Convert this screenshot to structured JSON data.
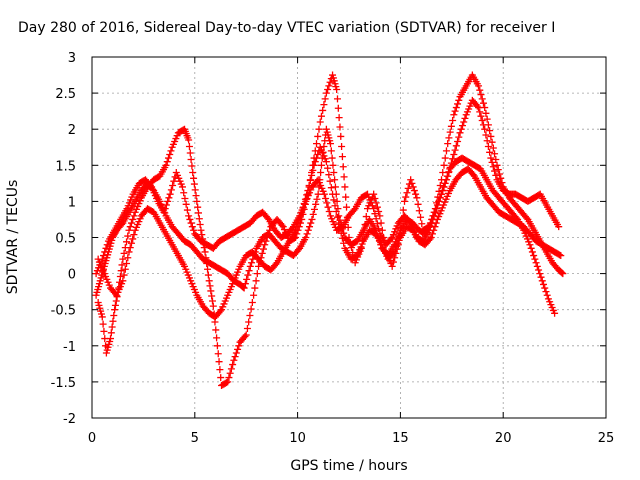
{
  "chart_data": {
    "type": "scatter",
    "title": "Day 280 of 2016, Sidereal Day-to-day VTEC variation (SDTVAR) for receiver I",
    "xlabel": "GPS time / hours",
    "ylabel": "SDTVAR / TECUs",
    "xlim": [
      0,
      25
    ],
    "ylim": [
      -2,
      3
    ],
    "xticks": [
      "0",
      "5",
      "10",
      "15",
      "20",
      "25"
    ],
    "yticks": [
      "-2",
      "-1.5",
      "-1",
      "-0.5",
      "0",
      "0.5",
      "1",
      "1.5",
      "2",
      "2.5",
      "3"
    ],
    "grid": true,
    "marker": "plus",
    "color": "#ff0000",
    "series": [
      {
        "points": [
          [
            0.2,
            -0.3
          ],
          [
            0.4,
            -0.1
          ],
          [
            0.6,
            0.1
          ],
          [
            0.8,
            0.3
          ],
          [
            1.0,
            0.5
          ],
          [
            1.2,
            0.6
          ],
          [
            1.5,
            0.7
          ],
          [
            1.8,
            0.85
          ],
          [
            2.1,
            1.0
          ],
          [
            2.4,
            1.15
          ],
          [
            2.7,
            1.25
          ],
          [
            3.0,
            1.15
          ],
          [
            3.3,
            1.0
          ],
          [
            3.6,
            0.8
          ],
          [
            3.9,
            0.65
          ],
          [
            4.2,
            0.55
          ],
          [
            4.5,
            0.45
          ],
          [
            4.8,
            0.4
          ],
          [
            5.1,
            0.3
          ],
          [
            5.4,
            0.2
          ],
          [
            5.7,
            0.15
          ],
          [
            6.0,
            0.1
          ],
          [
            6.3,
            0.05
          ],
          [
            6.6,
            0.0
          ],
          [
            6.9,
            -0.1
          ],
          [
            7.2,
            -0.15
          ],
          [
            7.4,
            -0.2
          ],
          [
            7.7,
            0.1
          ],
          [
            8.0,
            0.35
          ],
          [
            8.3,
            0.5
          ],
          [
            8.6,
            0.55
          ],
          [
            8.9,
            0.45
          ],
          [
            9.2,
            0.35
          ],
          [
            9.5,
            0.3
          ],
          [
            9.8,
            0.25
          ],
          [
            10.1,
            0.35
          ],
          [
            10.4,
            0.5
          ],
          [
            10.7,
            0.75
          ],
          [
            11.0,
            1.1
          ],
          [
            11.2,
            1.6
          ],
          [
            11.4,
            2.0
          ],
          [
            11.6,
            1.8
          ],
          [
            11.8,
            1.3
          ],
          [
            12.0,
            0.8
          ],
          [
            12.3,
            0.5
          ],
          [
            12.6,
            0.4
          ],
          [
            12.9,
            0.45
          ],
          [
            13.2,
            0.6
          ],
          [
            13.5,
            0.75
          ],
          [
            13.8,
            0.6
          ],
          [
            14.1,
            0.35
          ],
          [
            14.4,
            0.25
          ],
          [
            14.7,
            0.4
          ],
          [
            15.0,
            0.6
          ],
          [
            15.3,
            0.75
          ],
          [
            15.6,
            0.7
          ],
          [
            15.9,
            0.6
          ],
          [
            16.2,
            0.55
          ],
          [
            16.5,
            0.7
          ],
          [
            16.8,
            0.95
          ],
          [
            17.1,
            1.2
          ],
          [
            17.4,
            1.45
          ],
          [
            17.7,
            1.55
          ],
          [
            18.0,
            1.6
          ],
          [
            18.3,
            1.55
          ],
          [
            18.6,
            1.5
          ],
          [
            18.9,
            1.45
          ],
          [
            19.2,
            1.3
          ],
          [
            19.5,
            1.15
          ],
          [
            19.8,
            1.05
          ],
          [
            20.1,
            0.95
          ],
          [
            20.4,
            0.85
          ],
          [
            20.7,
            0.75
          ],
          [
            21.0,
            0.6
          ],
          [
            21.3,
            0.4
          ],
          [
            21.6,
            0.15
          ],
          [
            21.9,
            -0.1
          ],
          [
            22.2,
            -0.35
          ],
          [
            22.5,
            -0.55
          ]
        ]
      },
      {
        "points": [
          [
            0.3,
            -0.4
          ],
          [
            0.5,
            -0.6
          ],
          [
            0.7,
            -1.1
          ],
          [
            0.9,
            -0.9
          ],
          [
            1.1,
            -0.5
          ],
          [
            1.3,
            -0.2
          ],
          [
            1.5,
            0.2
          ],
          [
            1.8,
            0.6
          ],
          [
            2.1,
            0.85
          ],
          [
            2.4,
            1.05
          ],
          [
            2.7,
            1.2
          ],
          [
            3.0,
            1.3
          ],
          [
            3.3,
            1.35
          ],
          [
            3.6,
            1.5
          ],
          [
            3.9,
            1.75
          ],
          [
            4.2,
            1.95
          ],
          [
            4.5,
            2.0
          ],
          [
            4.7,
            1.85
          ],
          [
            4.9,
            1.4
          ],
          [
            5.1,
            1.0
          ],
          [
            5.3,
            0.6
          ],
          [
            5.5,
            0.3
          ],
          [
            5.7,
            -0.1
          ],
          [
            5.9,
            -0.45
          ],
          [
            6.1,
            -1.0
          ],
          [
            6.3,
            -1.55
          ],
          [
            6.6,
            -1.5
          ],
          [
            6.9,
            -1.2
          ],
          [
            7.2,
            -0.95
          ],
          [
            7.5,
            -0.85
          ],
          [
            7.8,
            -0.4
          ],
          [
            8.1,
            0.1
          ],
          [
            8.4,
            0.4
          ],
          [
            8.7,
            0.65
          ],
          [
            9.0,
            0.75
          ],
          [
            9.3,
            0.65
          ],
          [
            9.6,
            0.45
          ],
          [
            9.9,
            0.5
          ],
          [
            10.2,
            0.75
          ],
          [
            10.5,
            1.1
          ],
          [
            10.8,
            1.6
          ],
          [
            11.1,
            2.1
          ],
          [
            11.4,
            2.5
          ],
          [
            11.7,
            2.75
          ],
          [
            11.9,
            2.55
          ],
          [
            12.1,
            1.9
          ],
          [
            12.3,
            1.2
          ],
          [
            12.5,
            0.5
          ],
          [
            12.8,
            0.15
          ],
          [
            13.1,
            0.35
          ],
          [
            13.4,
            0.9
          ],
          [
            13.7,
            1.1
          ],
          [
            14.0,
            0.8
          ],
          [
            14.3,
            0.3
          ],
          [
            14.6,
            0.1
          ],
          [
            14.9,
            0.4
          ],
          [
            15.2,
            1.0
          ],
          [
            15.5,
            1.3
          ],
          [
            15.8,
            1.05
          ],
          [
            16.1,
            0.6
          ],
          [
            16.4,
            0.65
          ],
          [
            16.7,
            0.9
          ],
          [
            17.0,
            1.3
          ],
          [
            17.3,
            1.8
          ],
          [
            17.6,
            2.2
          ],
          [
            17.9,
            2.45
          ],
          [
            18.2,
            2.6
          ],
          [
            18.5,
            2.75
          ],
          [
            18.8,
            2.6
          ],
          [
            19.1,
            2.3
          ],
          [
            19.4,
            1.9
          ],
          [
            19.7,
            1.5
          ],
          [
            20.0,
            1.2
          ],
          [
            20.3,
            1.05
          ],
          [
            20.6,
            0.95
          ],
          [
            20.9,
            0.85
          ],
          [
            21.2,
            0.75
          ],
          [
            21.5,
            0.6
          ],
          [
            21.8,
            0.45
          ],
          [
            22.1,
            0.3
          ],
          [
            22.4,
            0.15
          ],
          [
            22.7,
            0.05
          ],
          [
            22.9,
            0.0
          ]
        ]
      },
      {
        "points": [
          [
            0.2,
            0.0
          ],
          [
            0.5,
            0.2
          ],
          [
            0.8,
            0.45
          ],
          [
            1.1,
            0.6
          ],
          [
            1.4,
            0.75
          ],
          [
            1.7,
            0.9
          ],
          [
            2.0,
            1.1
          ],
          [
            2.3,
            1.25
          ],
          [
            2.6,
            1.3
          ],
          [
            2.9,
            1.2
          ],
          [
            3.2,
            1.0
          ],
          [
            3.5,
            0.85
          ],
          [
            3.8,
            1.1
          ],
          [
            4.1,
            1.4
          ],
          [
            4.4,
            1.2
          ],
          [
            4.7,
            0.8
          ],
          [
            5.0,
            0.55
          ],
          [
            5.3,
            0.45
          ],
          [
            5.6,
            0.4
          ],
          [
            5.9,
            0.35
          ],
          [
            6.2,
            0.45
          ],
          [
            6.5,
            0.5
          ],
          [
            6.8,
            0.55
          ],
          [
            7.1,
            0.6
          ],
          [
            7.4,
            0.65
          ],
          [
            7.7,
            0.7
          ],
          [
            8.0,
            0.8
          ],
          [
            8.3,
            0.85
          ],
          [
            8.6,
            0.75
          ],
          [
            8.9,
            0.6
          ],
          [
            9.2,
            0.5
          ],
          [
            9.5,
            0.55
          ],
          [
            9.8,
            0.65
          ],
          [
            10.1,
            0.8
          ],
          [
            10.4,
            1.0
          ],
          [
            10.7,
            1.2
          ],
          [
            11.0,
            1.3
          ],
          [
            11.3,
            1.1
          ],
          [
            11.6,
            0.8
          ],
          [
            11.9,
            0.6
          ],
          [
            12.2,
            0.65
          ],
          [
            12.5,
            0.8
          ],
          [
            12.8,
            0.9
          ],
          [
            13.1,
            1.05
          ],
          [
            13.4,
            1.1
          ],
          [
            13.7,
            0.9
          ],
          [
            14.0,
            0.55
          ],
          [
            14.3,
            0.4
          ],
          [
            14.6,
            0.5
          ],
          [
            14.9,
            0.7
          ],
          [
            15.2,
            0.8
          ],
          [
            15.5,
            0.7
          ],
          [
            15.8,
            0.5
          ],
          [
            16.1,
            0.45
          ],
          [
            16.4,
            0.6
          ],
          [
            16.7,
            0.85
          ],
          [
            17.0,
            1.1
          ],
          [
            17.3,
            1.35
          ],
          [
            17.6,
            1.65
          ],
          [
            17.9,
            1.95
          ],
          [
            18.2,
            2.2
          ],
          [
            18.5,
            2.4
          ],
          [
            18.8,
            2.3
          ],
          [
            19.1,
            2.0
          ],
          [
            19.4,
            1.6
          ],
          [
            19.7,
            1.3
          ],
          [
            20.0,
            1.15
          ],
          [
            20.3,
            1.1
          ],
          [
            20.6,
            1.1
          ],
          [
            20.9,
            1.05
          ],
          [
            21.2,
            1.0
          ],
          [
            21.5,
            1.05
          ],
          [
            21.8,
            1.1
          ],
          [
            22.1,
            0.95
          ],
          [
            22.4,
            0.8
          ],
          [
            22.7,
            0.65
          ]
        ]
      },
      {
        "points": [
          [
            0.3,
            0.2
          ],
          [
            0.6,
            0.0
          ],
          [
            0.9,
            -0.2
          ],
          [
            1.2,
            -0.3
          ],
          [
            1.5,
            -0.1
          ],
          [
            1.8,
            0.3
          ],
          [
            2.1,
            0.6
          ],
          [
            2.4,
            0.8
          ],
          [
            2.7,
            0.9
          ],
          [
            3.0,
            0.85
          ],
          [
            3.3,
            0.7
          ],
          [
            3.6,
            0.55
          ],
          [
            3.9,
            0.4
          ],
          [
            4.2,
            0.25
          ],
          [
            4.5,
            0.1
          ],
          [
            4.8,
            -0.1
          ],
          [
            5.1,
            -0.3
          ],
          [
            5.4,
            -0.45
          ],
          [
            5.7,
            -0.55
          ],
          [
            6.0,
            -0.6
          ],
          [
            6.3,
            -0.5
          ],
          [
            6.6,
            -0.3
          ],
          [
            6.9,
            -0.1
          ],
          [
            7.2,
            0.1
          ],
          [
            7.5,
            0.25
          ],
          [
            7.8,
            0.3
          ],
          [
            8.1,
            0.2
          ],
          [
            8.4,
            0.1
          ],
          [
            8.7,
            0.05
          ],
          [
            9.0,
            0.15
          ],
          [
            9.3,
            0.3
          ],
          [
            9.6,
            0.45
          ],
          [
            9.9,
            0.6
          ],
          [
            10.2,
            0.85
          ],
          [
            10.5,
            1.15
          ],
          [
            10.8,
            1.5
          ],
          [
            11.1,
            1.75
          ],
          [
            11.4,
            1.55
          ],
          [
            11.7,
            1.1
          ],
          [
            12.0,
            0.7
          ],
          [
            12.3,
            0.35
          ],
          [
            12.6,
            0.2
          ],
          [
            12.9,
            0.25
          ],
          [
            13.2,
            0.45
          ],
          [
            13.5,
            0.6
          ],
          [
            13.8,
            0.55
          ],
          [
            14.1,
            0.4
          ],
          [
            14.4,
            0.2
          ],
          [
            14.7,
            0.3
          ],
          [
            15.0,
            0.5
          ],
          [
            15.3,
            0.65
          ],
          [
            15.6,
            0.6
          ],
          [
            15.9,
            0.45
          ],
          [
            16.2,
            0.4
          ],
          [
            16.5,
            0.5
          ],
          [
            16.8,
            0.75
          ],
          [
            17.1,
            0.95
          ],
          [
            17.4,
            1.15
          ],
          [
            17.7,
            1.3
          ],
          [
            18.0,
            1.4
          ],
          [
            18.3,
            1.45
          ],
          [
            18.6,
            1.35
          ],
          [
            18.9,
            1.2
          ],
          [
            19.2,
            1.05
          ],
          [
            19.5,
            0.95
          ],
          [
            19.8,
            0.85
          ],
          [
            20.1,
            0.8
          ],
          [
            20.4,
            0.75
          ],
          [
            20.7,
            0.7
          ],
          [
            21.0,
            0.65
          ],
          [
            21.3,
            0.55
          ],
          [
            21.6,
            0.45
          ],
          [
            21.9,
            0.4
          ],
          [
            22.2,
            0.35
          ],
          [
            22.5,
            0.3
          ],
          [
            22.8,
            0.25
          ]
        ]
      }
    ]
  }
}
